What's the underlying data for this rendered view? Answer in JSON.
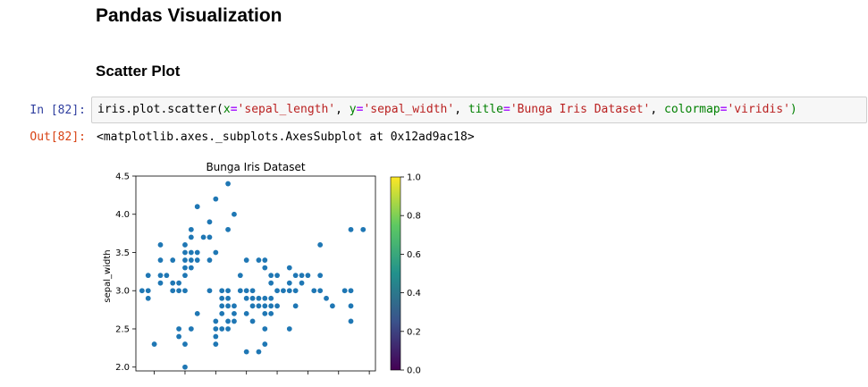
{
  "notebook": {
    "heading": "Pandas Visualization",
    "subheading": "Scatter Plot",
    "in_prompt": "In [82]:",
    "out_prompt": "Out[82]:",
    "code": {
      "t1": "iris.plot.scatter(",
      "t2": "x",
      "t3": "=",
      "t4": "'sepal_length'",
      "t5": ", ",
      "t6": "y",
      "t7": "=",
      "t8": "'sepal_width'",
      "t9": ", ",
      "t10": "title",
      "t11": "=",
      "t12": "'Bunga Iris Dataset'",
      "t13": ", ",
      "t14": "colormap",
      "t15": "=",
      "t16": "'viridis'",
      "t17": ")"
    },
    "output_text": "<matplotlib.axes._subplots.AxesSubplot at 0x12ad9ac18>"
  },
  "chart_data": {
    "type": "scatter",
    "title": "Bunga Iris Dataset",
    "xlabel": "",
    "ylabel": "sepal_width",
    "ylim": [
      1.95,
      4.5
    ],
    "xlim": [
      4.2,
      8.1
    ],
    "yticks": [
      "2.0",
      "2.5",
      "3.0",
      "3.5",
      "4.0",
      "4.5"
    ],
    "point_color": "#1f77b4",
    "colorbar": {
      "colormap": "viridis",
      "ticks": [
        "0.0",
        "0.2",
        "0.4",
        "0.6",
        "0.8",
        "1.0"
      ]
    },
    "points": [
      [
        4.3,
        3.0
      ],
      [
        4.4,
        2.9
      ],
      [
        4.4,
        3.0
      ],
      [
        4.4,
        3.2
      ],
      [
        4.5,
        2.3
      ],
      [
        4.6,
        3.1
      ],
      [
        4.6,
        3.2
      ],
      [
        4.6,
        3.4
      ],
      [
        4.6,
        3.6
      ],
      [
        4.7,
        3.2
      ],
      [
        4.8,
        3.0
      ],
      [
        4.8,
        3.1
      ],
      [
        4.8,
        3.4
      ],
      [
        4.9,
        2.4
      ],
      [
        4.9,
        2.5
      ],
      [
        4.9,
        3.0
      ],
      [
        4.9,
        3.1
      ],
      [
        5.0,
        2.0
      ],
      [
        5.0,
        2.3
      ],
      [
        5.0,
        3.0
      ],
      [
        5.0,
        3.2
      ],
      [
        5.0,
        3.3
      ],
      [
        5.0,
        3.4
      ],
      [
        5.0,
        3.5
      ],
      [
        5.0,
        3.6
      ],
      [
        5.1,
        2.5
      ],
      [
        5.1,
        3.3
      ],
      [
        5.1,
        3.4
      ],
      [
        5.1,
        3.5
      ],
      [
        5.1,
        3.7
      ],
      [
        5.1,
        3.8
      ],
      [
        5.2,
        2.7
      ],
      [
        5.2,
        3.4
      ],
      [
        5.2,
        3.5
      ],
      [
        5.2,
        4.1
      ],
      [
        5.3,
        3.7
      ],
      [
        5.4,
        3.0
      ],
      [
        5.4,
        3.4
      ],
      [
        5.4,
        3.7
      ],
      [
        5.4,
        3.9
      ],
      [
        5.5,
        2.3
      ],
      [
        5.5,
        2.4
      ],
      [
        5.5,
        2.5
      ],
      [
        5.5,
        2.6
      ],
      [
        5.5,
        3.5
      ],
      [
        5.5,
        4.2
      ],
      [
        5.6,
        2.5
      ],
      [
        5.6,
        2.7
      ],
      [
        5.6,
        2.8
      ],
      [
        5.6,
        2.9
      ],
      [
        5.6,
        3.0
      ],
      [
        5.7,
        2.5
      ],
      [
        5.7,
        2.6
      ],
      [
        5.7,
        2.8
      ],
      [
        5.7,
        2.9
      ],
      [
        5.7,
        3.0
      ],
      [
        5.7,
        3.8
      ],
      [
        5.7,
        4.4
      ],
      [
        5.8,
        2.6
      ],
      [
        5.8,
        2.7
      ],
      [
        5.8,
        2.8
      ],
      [
        5.8,
        4.0
      ],
      [
        5.9,
        3.0
      ],
      [
        5.9,
        3.2
      ],
      [
        6.0,
        2.2
      ],
      [
        6.0,
        2.7
      ],
      [
        6.0,
        2.9
      ],
      [
        6.0,
        3.0
      ],
      [
        6.0,
        3.4
      ],
      [
        6.1,
        2.6
      ],
      [
        6.1,
        2.8
      ],
      [
        6.1,
        2.9
      ],
      [
        6.1,
        3.0
      ],
      [
        6.2,
        2.2
      ],
      [
        6.2,
        2.8
      ],
      [
        6.2,
        2.9
      ],
      [
        6.2,
        3.4
      ],
      [
        6.3,
        2.3
      ],
      [
        6.3,
        2.5
      ],
      [
        6.3,
        2.7
      ],
      [
        6.3,
        2.8
      ],
      [
        6.3,
        2.9
      ],
      [
        6.3,
        3.3
      ],
      [
        6.3,
        3.4
      ],
      [
        6.4,
        2.7
      ],
      [
        6.4,
        2.8
      ],
      [
        6.4,
        2.9
      ],
      [
        6.4,
        3.1
      ],
      [
        6.4,
        3.2
      ],
      [
        6.5,
        2.8
      ],
      [
        6.5,
        3.0
      ],
      [
        6.5,
        3.2
      ],
      [
        6.6,
        3.0
      ],
      [
        6.7,
        2.5
      ],
      [
        6.7,
        3.0
      ],
      [
        6.7,
        3.1
      ],
      [
        6.7,
        3.3
      ],
      [
        6.8,
        2.8
      ],
      [
        6.8,
        3.0
      ],
      [
        6.8,
        3.2
      ],
      [
        6.9,
        3.1
      ],
      [
        6.9,
        3.2
      ],
      [
        7.0,
        3.2
      ],
      [
        7.1,
        3.0
      ],
      [
        7.2,
        3.0
      ],
      [
        7.2,
        3.2
      ],
      [
        7.2,
        3.6
      ],
      [
        7.3,
        2.9
      ],
      [
        7.4,
        2.8
      ],
      [
        7.6,
        3.0
      ],
      [
        7.7,
        2.6
      ],
      [
        7.7,
        2.8
      ],
      [
        7.7,
        3.0
      ],
      [
        7.7,
        3.8
      ],
      [
        7.9,
        3.8
      ]
    ]
  }
}
